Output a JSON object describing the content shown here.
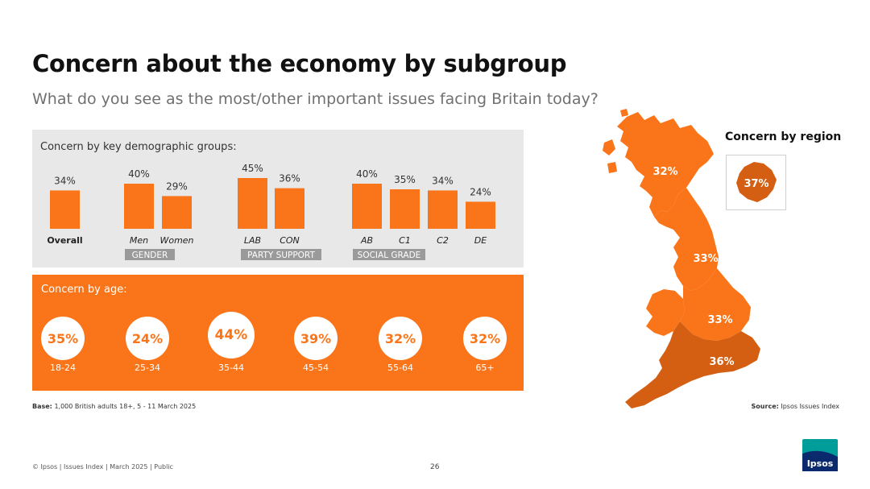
{
  "title": "Concern about the economy by subgroup",
  "subtitle": "What do you see as the most/other important issues facing Britain today?",
  "demo_heading": "Concern by key demographic groups:",
  "age_heading": "Concern by age:",
  "region_heading": "Concern by region",
  "base_label": "Base:",
  "base_text": "1,000 British adults 18+, 5 - 11 March 2025",
  "source_label": "Source:",
  "source_text": "Ipsos Issues Index",
  "footer": "© Ipsos | Issues Index | March 2025 | Public",
  "page_number": "26",
  "logo_text": "Ipsos",
  "colors": {
    "orange": "#fa7519",
    "dark_orange": "#d45f12",
    "panel_gray": "#e8e8e8",
    "logo_teal": "#009d9a",
    "logo_navy": "#0b2a6e"
  },
  "chart_data": [
    {
      "type": "bar",
      "title": "Concern by key demographic groups:",
      "categories": [
        "Overall",
        "Men",
        "Women",
        "LAB",
        "CON",
        "AB",
        "C1",
        "C2",
        "DE"
      ],
      "values": [
        34,
        40,
        29,
        45,
        36,
        40,
        35,
        34,
        24
      ],
      "value_labels": [
        "34%",
        "40%",
        "29%",
        "45%",
        "36%",
        "40%",
        "35%",
        "34%",
        "24%"
      ],
      "groups": [
        {
          "name": "GENDER",
          "categories": [
            "Men",
            "Women"
          ]
        },
        {
          "name": "PARTY SUPPORT",
          "categories": [
            "LAB",
            "CON"
          ]
        },
        {
          "name": "SOCIAL GRADE",
          "categories": [
            "AB",
            "C1",
            "C2",
            "DE"
          ]
        }
      ],
      "ylim": [
        0,
        100
      ]
    },
    {
      "type": "table",
      "title": "Concern by age:",
      "categories": [
        "18-24",
        "25-34",
        "35-44",
        "45-54",
        "55-64",
        "65+"
      ],
      "values": [
        35,
        24,
        44,
        39,
        32,
        32
      ],
      "value_labels": [
        "35%",
        "24%",
        "44%",
        "39%",
        "32%",
        "32%"
      ]
    },
    {
      "type": "table",
      "title": "Concern by region",
      "value_labels": [
        "32%",
        "33%",
        "33%",
        "36%",
        "37%"
      ],
      "values": [
        32,
        33,
        33,
        36,
        37
      ]
    }
  ]
}
